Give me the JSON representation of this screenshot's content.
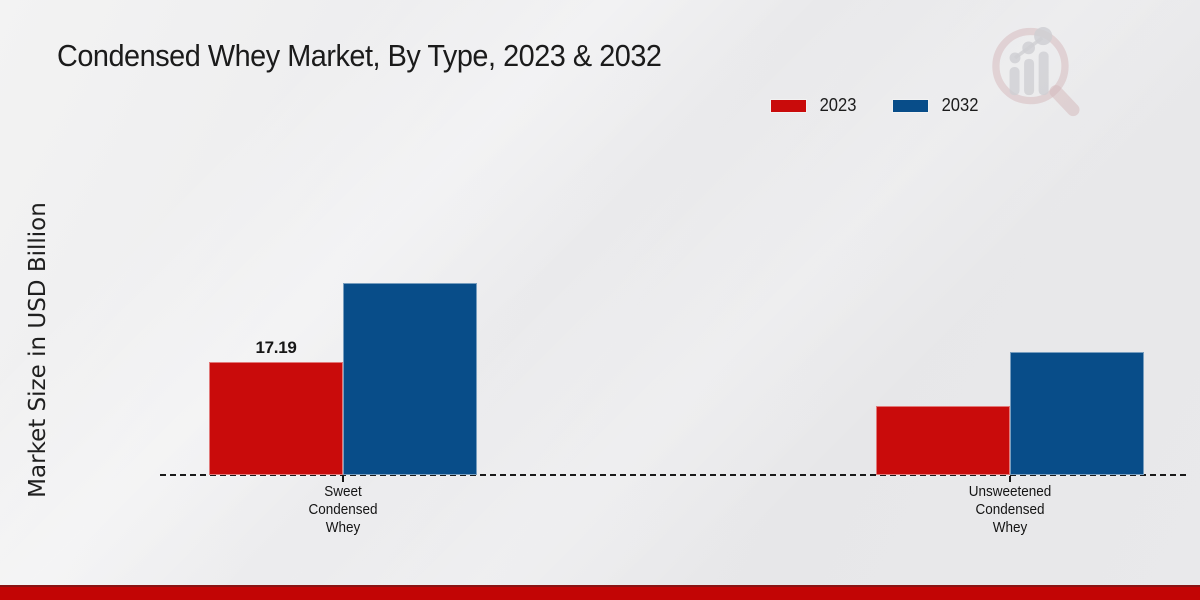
{
  "page": {
    "title": "Condensed Whey Market, By Type, 2023 & 2032"
  },
  "legend": {
    "items": [
      {
        "label": "2023",
        "color": "#c90b0b"
      },
      {
        "label": "2032",
        "color": "#084d89"
      }
    ]
  },
  "chart_data": {
    "type": "bar",
    "title": "Condensed Whey Market, By Type, 2023 & 2032",
    "xlabel": "",
    "ylabel": "Market Size in USD Billion",
    "categories": [
      "Sweet Condensed Whey",
      "Unsweetened Condensed Whey"
    ],
    "series": [
      {
        "name": "2023",
        "color": "#c90b0b",
        "values": [
          17.19,
          10.5
        ],
        "data_labels": [
          "17.19",
          null
        ]
      },
      {
        "name": "2032",
        "color": "#084d89",
        "values": [
          29.2,
          18.7
        ],
        "data_labels": [
          null,
          null
        ]
      }
    ],
    "legend_position": "top-right",
    "grid": false,
    "y_axis_ticks_visible": false,
    "baseline_style": "dashed",
    "ylim": [
      0,
      32
    ]
  },
  "footer": {
    "band_color": "#c20505"
  }
}
